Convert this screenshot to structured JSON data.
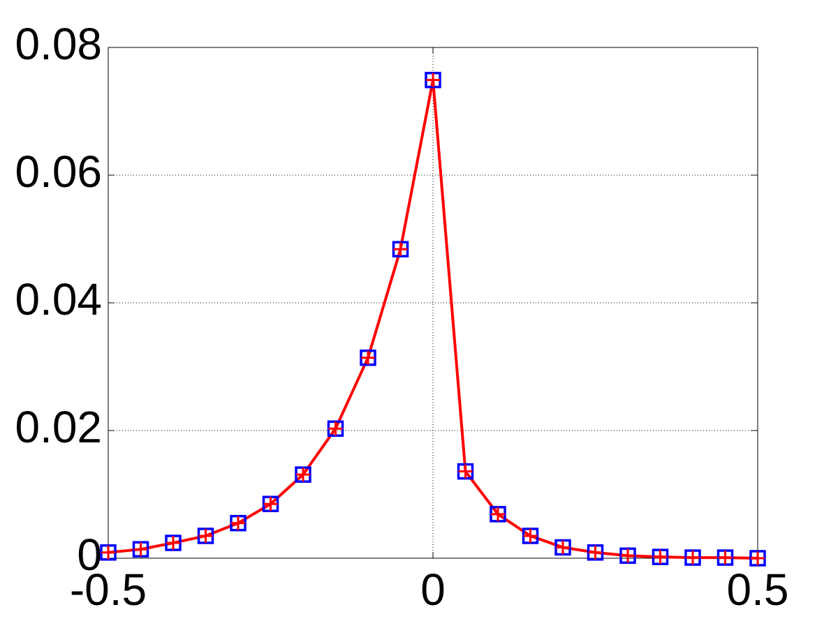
{
  "chart_data": {
    "type": "line",
    "x": [
      -0.5,
      -0.45,
      -0.4,
      -0.35,
      -0.3,
      -0.25,
      -0.2,
      -0.15,
      -0.1,
      -0.05,
      0,
      0.05,
      0.1,
      0.15,
      0.2,
      0.25,
      0.3,
      0.35,
      0.4,
      0.45,
      0.5
    ],
    "series": [
      {
        "color": "#0000ff",
        "marker": "square",
        "line": false,
        "values": [
          0.0009,
          0.0014,
          0.0024,
          0.0035,
          0.0055,
          0.0085,
          0.0131,
          0.0203,
          0.0314,
          0.0484,
          0.0749,
          0.0136,
          0.0069,
          0.0035,
          0.0017,
          0.0009,
          0.0004,
          0.0002,
          0.0001,
          0.0001,
          0
        ]
      },
      {
        "color": "#ff0000",
        "marker": "plus",
        "line": true,
        "values": [
          0.0009,
          0.0014,
          0.0024,
          0.0035,
          0.0055,
          0.0085,
          0.0131,
          0.0203,
          0.0314,
          0.0484,
          0.0749,
          0.0136,
          0.0069,
          0.0035,
          0.0017,
          0.0009,
          0.0004,
          0.0002,
          0.0001,
          0.0001,
          0
        ]
      }
    ],
    "xlim": [
      -0.5,
      0.5
    ],
    "xticks": [
      -0.5,
      0,
      0.5
    ],
    "ylim": [
      0,
      0.08
    ],
    "yticks": [
      0,
      0.02,
      0.04,
      0.06,
      0.08
    ],
    "grid": true
  }
}
